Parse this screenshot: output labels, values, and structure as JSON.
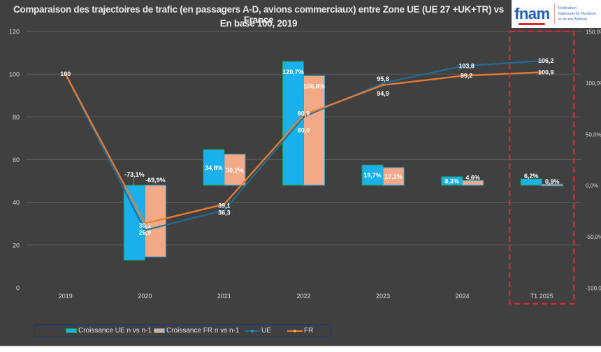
{
  "header": {
    "title_line1": "Comparaison des trajectoires de trafic (en passagers A-D, avions commerciaux) entre Zone UE (UE 27 +UK+TR)  vs France",
    "title_line2": "En base 100, 2019"
  },
  "logo": {
    "word": "fnam",
    "subtitle_lines": [
      "Fédération",
      "Nationale de l'Aviation",
      "et de ses Métiers"
    ]
  },
  "colors": {
    "background": "#404040",
    "ue_bar": "#1ab0ec",
    "fr_bar": "#f2a987",
    "ue_line": "#1f6f9a",
    "fr_line": "#ed7d31",
    "highlight": "#e2262d",
    "grid": "#595959",
    "text": "#d9d9d9"
  },
  "chart_data": {
    "type": "bar+line",
    "title": "Comparaison des trajectoires de trafic (en passagers A-D, avions commerciaux) entre Zone UE (UE 27 +UK+TR)  vs France",
    "subtitle": "En base 100, 2019",
    "categories": [
      "2019",
      "2020",
      "2021",
      "2022",
      "2023",
      "2024",
      "T1 2025"
    ],
    "series": [
      {
        "name": "Croissance UE n vs n-1",
        "type": "bar",
        "axis": "right",
        "values": [
          null,
          -73.1,
          34.8,
          120.7,
          19.7,
          8.3,
          6.2
        ],
        "labels": [
          "",
          "-73,1%",
          "34,8%",
          "120,7%",
          "19,7%",
          "8,3%",
          "6,2%"
        ]
      },
      {
        "name": "Croissance FR n vs n-1",
        "type": "bar",
        "axis": "right",
        "values": [
          null,
          -69.9,
          30.2,
          106.8,
          17.2,
          4.6,
          0.9
        ],
        "labels": [
          "",
          "-69,9%",
          "30,2%",
          "106,8%",
          "17,2%",
          "4,6%",
          "0,9%"
        ]
      },
      {
        "name": "UE",
        "type": "line",
        "axis": "left",
        "values": [
          100,
          26.9,
          36.3,
          80.0,
          95.8,
          103.8,
          106.2
        ],
        "labels": [
          "100",
          "26,9",
          "36,3",
          "80,0",
          "95,8",
          "103,8",
          "106,2"
        ]
      },
      {
        "name": "FR",
        "type": "line",
        "axis": "left",
        "values": [
          100,
          30.1,
          39.1,
          80.9,
          94.9,
          99.2,
          100.9
        ],
        "labels": [
          "100",
          "30,1",
          "39,1",
          "80,9",
          "94,9",
          "99,2",
          "100,9"
        ]
      }
    ],
    "left_axis": {
      "min": 0,
      "max": 120,
      "ticks": [
        0,
        20,
        40,
        60,
        80,
        100,
        120
      ],
      "tick_labels": [
        "0",
        "20",
        "40",
        "60",
        "80",
        "100",
        "120"
      ]
    },
    "right_axis": {
      "min": -100,
      "max": 150,
      "ticks": [
        -100,
        -50,
        0,
        50,
        100,
        150
      ],
      "tick_labels": [
        "-100,0%",
        "-50,0%",
        "0,0%",
        "50,0%",
        "100,0%",
        "150,0%"
      ]
    },
    "grid": true,
    "legend": {
      "position": "bottom-left",
      "entries": [
        "Croissance UE n vs n-1",
        "Croissance FR n vs n-1",
        "UE",
        "FR"
      ]
    },
    "highlight": {
      "category": "T1 2025",
      "style": "red dashed box"
    }
  }
}
